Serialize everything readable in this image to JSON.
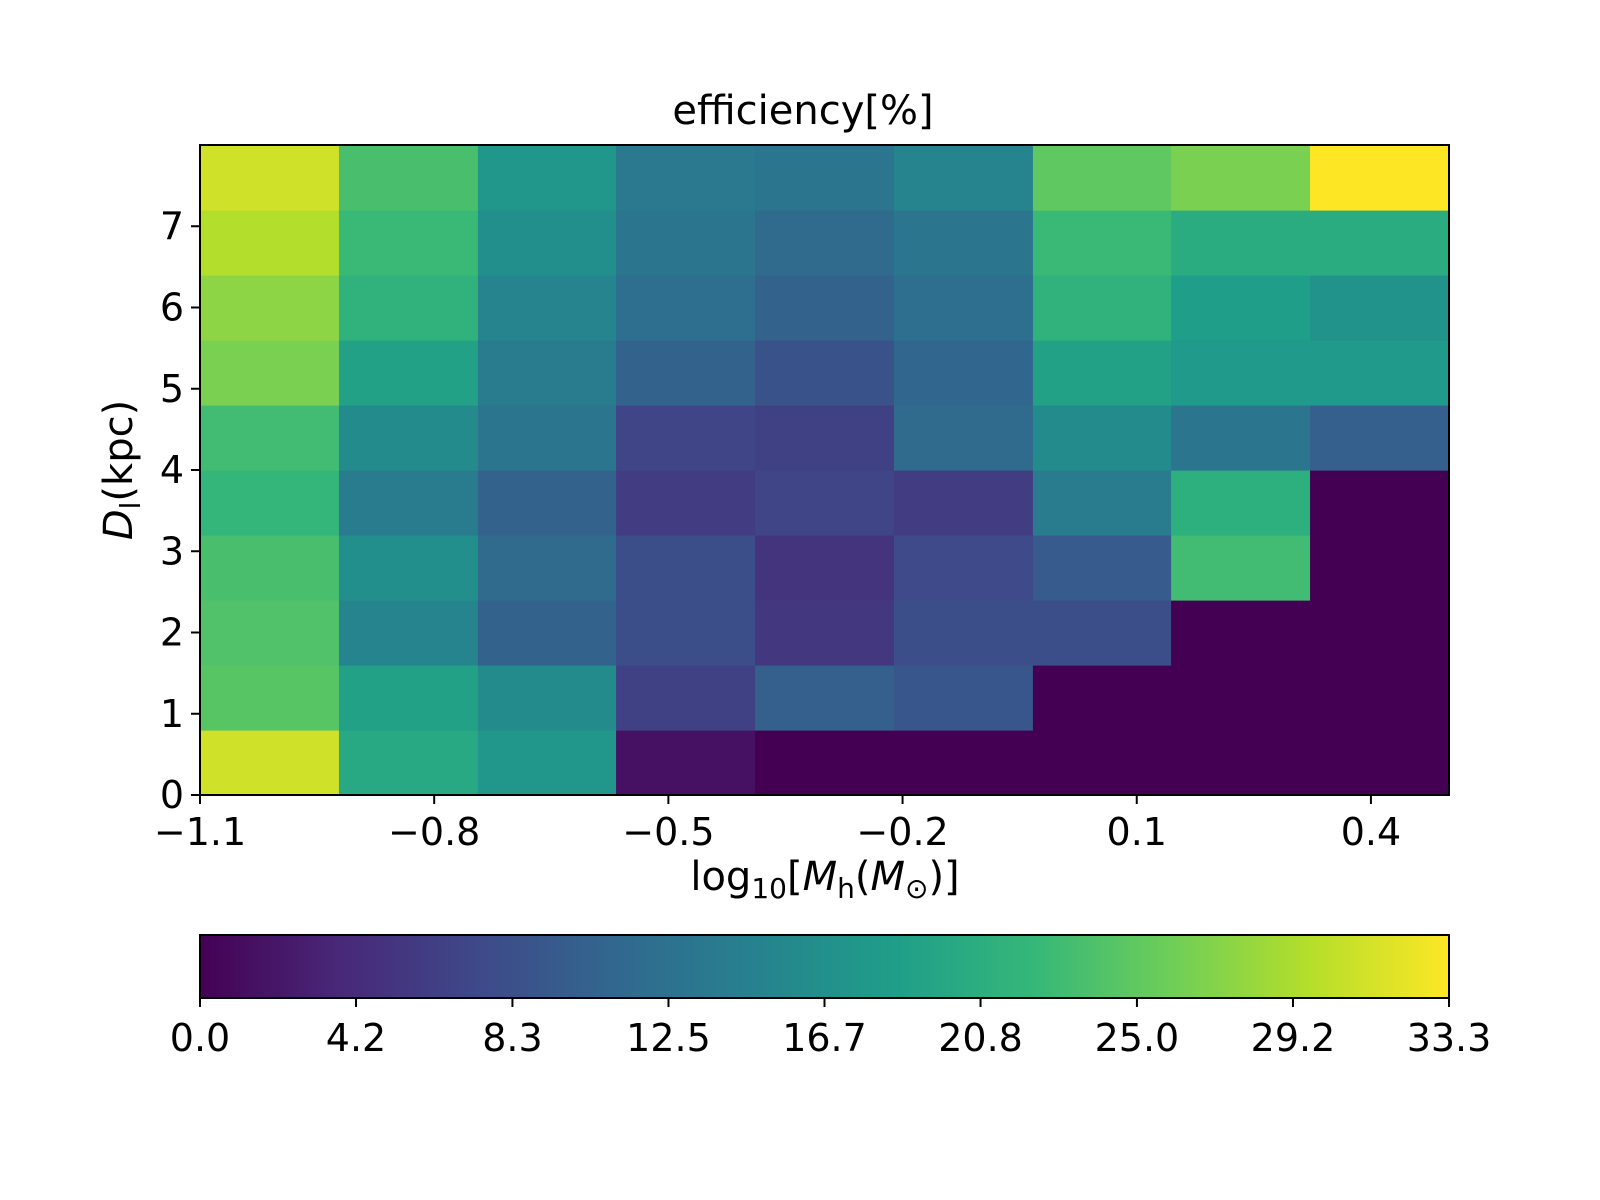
{
  "chart_data": {
    "type": "heatmap",
    "title": "efficiency[%]",
    "xlabel": {
      "pre": "log",
      "sub": "10",
      "mid": "[",
      "M": "M",
      "msub": "h",
      "open": "(",
      "Msun": "M",
      "sun": "⊙",
      "close": ")]"
    },
    "ylabel": {
      "D": "D",
      "sub": "l",
      "rest": "(kpc)"
    },
    "x_range": [
      -1.1,
      0.5
    ],
    "y_range": [
      0,
      8
    ],
    "x_ticks": [
      -1.1,
      -0.8,
      -0.5,
      -0.2,
      0.1,
      0.4
    ],
    "x_tick_labels": [
      "−1.1",
      "−0.8",
      "−0.5",
      "−0.2",
      "0.1",
      "0.4"
    ],
    "y_ticks": [
      0,
      1,
      2,
      3,
      4,
      5,
      6,
      7
    ],
    "y_tick_labels": [
      "0",
      "1",
      "2",
      "3",
      "4",
      "5",
      "6",
      "7"
    ],
    "x_bin_edges": [
      -1.1,
      -0.922,
      -0.744,
      -0.567,
      -0.389,
      -0.211,
      -0.033,
      0.144,
      0.322,
      0.5
    ],
    "y_bin_edges": [
      0,
      0.8,
      1.6,
      2.4,
      3.2,
      4.0,
      4.8,
      5.6,
      6.4,
      7.2,
      8.0
    ],
    "values_rows_from_bottom": [
      [
        31.0,
        20.0,
        17.5,
        1.5,
        0.0,
        0.0,
        0.0,
        0.0,
        0.0
      ],
      [
        24.5,
        19.0,
        16.0,
        6.5,
        10.0,
        9.0,
        0.0,
        0.0,
        0.0
      ],
      [
        24.0,
        15.0,
        10.5,
        8.0,
        5.5,
        8.0,
        8.0,
        0.0,
        0.0
      ],
      [
        23.5,
        16.5,
        11.5,
        8.0,
        5.0,
        7.5,
        9.5,
        23.0,
        0.0
      ],
      [
        22.0,
        14.0,
        10.5,
        6.0,
        7.0,
        6.0,
        14.0,
        21.0,
        0.0
      ],
      [
        23.0,
        16.0,
        13.0,
        7.0,
        6.5,
        11.5,
        16.0,
        13.0,
        10.0
      ],
      [
        26.5,
        19.0,
        14.0,
        10.5,
        8.5,
        11.0,
        19.0,
        18.0,
        18.0
      ],
      [
        27.5,
        21.5,
        15.0,
        12.0,
        10.5,
        12.0,
        21.5,
        18.5,
        17.0
      ],
      [
        29.5,
        22.5,
        16.5,
        13.0,
        11.5,
        13.0,
        22.5,
        20.5,
        20.5
      ],
      [
        31.0,
        23.5,
        17.5,
        13.5,
        13.0,
        15.0,
        25.0,
        26.5,
        33.3
      ]
    ],
    "colormap": "viridis",
    "colorbar": {
      "range": [
        0.0,
        33.3
      ],
      "ticks": [
        0.0,
        4.16,
        8.33,
        12.49,
        16.65,
        20.81,
        24.98,
        29.14,
        33.3
      ],
      "tick_labels": [
        "0.0",
        "4.2",
        "8.3",
        "12.5",
        "16.7",
        "20.8",
        "25.0",
        "29.2",
        "33.3"
      ],
      "orientation": "horizontal"
    },
    "colors": [
      "#440154",
      "#482878",
      "#3e4989",
      "#31688e",
      "#26828e",
      "#1f9e89",
      "#35b779",
      "#6ece58",
      "#b5de2b",
      "#fde725"
    ]
  }
}
